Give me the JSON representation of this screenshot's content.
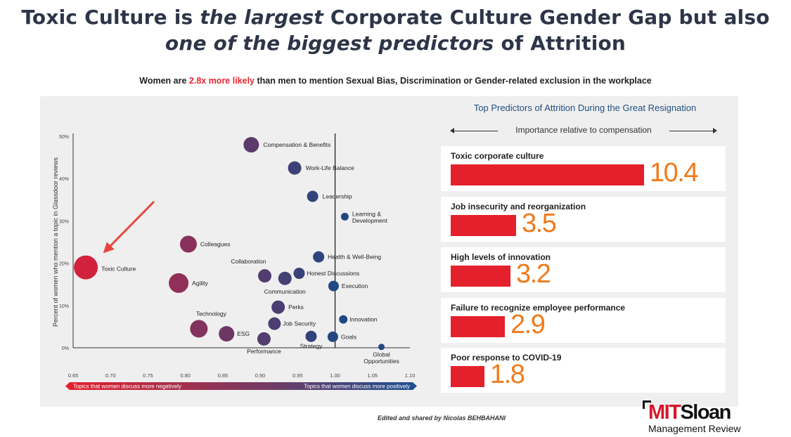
{
  "header": {
    "title_part1": "Toxic Culture is ",
    "title_em1": "the largest",
    "title_part2": " Corporate Culture Gender Gap but also",
    "title_em2": "one of the biggest predictors",
    "title_part3": " of Attrition",
    "subtitle_pre": "Women are ",
    "subtitle_highlight": "2.8x more likely",
    "subtitle_post": " than men to mention Sexual Bias, Discrimination or Gender-related exclusion in the workplace",
    "highlight_color": "#e4262f"
  },
  "chart_data": [
    {
      "type": "scatter",
      "ylabel": "Percent of women who mention a topic in Glassdoor reviews",
      "xlim": [
        0.65,
        1.1
      ],
      "ylim": [
        0,
        50
      ],
      "xticks": [
        "0.65",
        "0.70",
        "0.75",
        "0.80",
        "0.85",
        "0.90",
        "0.95",
        "1.00",
        "1.05",
        "1.10"
      ],
      "yticks": [
        {
          "value": 0,
          "label": "0%"
        },
        {
          "value": 10,
          "label": "10%"
        },
        {
          "value": 20,
          "label": "20%"
        },
        {
          "value": 30,
          "label": "30%"
        },
        {
          "value": 40,
          "label": "40%"
        },
        {
          "value": 50,
          "label": "50%"
        }
      ],
      "reference_line_x": 1.0,
      "gradient_bar": {
        "left_label": "Topics that women discuss more negatively",
        "right_label": "Topics that women discuss more positively",
        "left_color": "#e4202d",
        "right_color": "#1f4f8f"
      },
      "points": [
        {
          "label": "Compensation & Benefits",
          "x": 0.888,
          "y": 48,
          "r": 11
        },
        {
          "label": "Work-Life Balance",
          "x": 0.946,
          "y": 42.5,
          "r": 9.5
        },
        {
          "label": "Leadership",
          "x": 0.97,
          "y": 35.8,
          "r": 8
        },
        {
          "label": "Learning & Development",
          "lines": [
            "Learning &",
            "Development"
          ],
          "x": 1.013,
          "y": 31,
          "r": 5.5
        },
        {
          "label": "Colleagues",
          "x": 0.804,
          "y": 24.5,
          "r": 12
        },
        {
          "label": "Health & Well-Being",
          "x": 0.978,
          "y": 21.5,
          "r": 8
        },
        {
          "label": "Toxic Culture",
          "x": 0.667,
          "y": 19,
          "r": 17
        },
        {
          "label": "Collaboration",
          "x": 0.906,
          "y": 17,
          "r": 9.5
        },
        {
          "label": "Honest Discussions",
          "x": 0.952,
          "y": 17.6,
          "r": 8
        },
        {
          "label": "Communication",
          "x": 0.933,
          "y": 16.4,
          "r": 9.5
        },
        {
          "label": "Agility",
          "x": 0.791,
          "y": 15.3,
          "r": 14
        },
        {
          "label": "Execution",
          "x": 0.998,
          "y": 14.6,
          "r": 7.5
        },
        {
          "label": "Perks",
          "x": 0.924,
          "y": 9.6,
          "r": 9.5
        },
        {
          "label": "Innovation",
          "x": 1.011,
          "y": 6.7,
          "r": 6
        },
        {
          "label": "Job Security",
          "x": 0.919,
          "y": 5.7,
          "r": 9
        },
        {
          "label": "Technology",
          "x": 0.818,
          "y": 4.5,
          "r": 12.5
        },
        {
          "label": "ESG",
          "x": 0.855,
          "y": 3.3,
          "r": 11
        },
        {
          "label": "Strategy",
          "x": 0.968,
          "y": 2.7,
          "r": 8
        },
        {
          "label": "Goals",
          "x": 0.997,
          "y": 2.6,
          "r": 7.5
        },
        {
          "label": "Performance",
          "x": 0.905,
          "y": 2.1,
          "r": 9.5
        },
        {
          "label": "Global Opportunities",
          "lines": [
            "Global",
            "Opportunities"
          ],
          "x": 1.062,
          "y": 0.2,
          "r": 4.5
        }
      ]
    },
    {
      "type": "bar",
      "title": "Top Predictors of Attrition During the Great Resignation",
      "subtitle": "Importance relative to compensation",
      "categories": [
        "Toxic corporate culture",
        "Job insecurity and reorganization",
        "High levels of innovation",
        "Failure to recognize employee performance",
        "Poor response to COVID-19"
      ],
      "values": [
        10.4,
        3.5,
        3.2,
        2.9,
        1.8
      ],
      "value_labels": [
        "10.4",
        "3.5",
        "3.2",
        "2.9",
        "1.8"
      ],
      "bar_color": "#e4202d",
      "value_color": "#f07a1a"
    }
  ],
  "footer": {
    "credit": "Edited and shared by Nicolas BEHBAHANI",
    "logo_mit": "MIT",
    "logo_sloan": "Sloan",
    "logo_sub": "Management Review"
  }
}
